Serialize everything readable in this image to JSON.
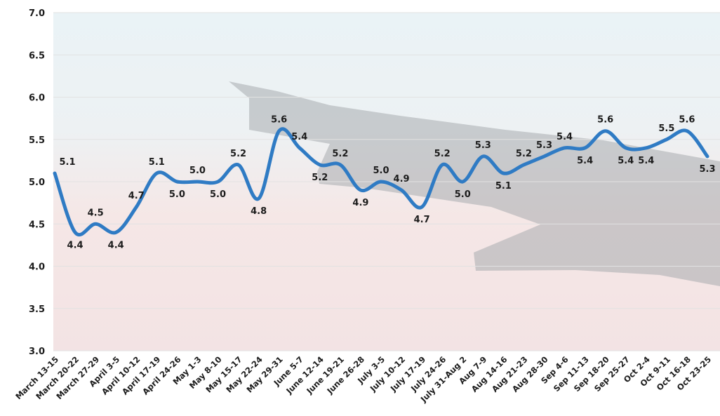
{
  "chart_data": {
    "type": "line",
    "title": "",
    "xlabel": "",
    "ylabel": "",
    "ylim": [
      3.0,
      7.0
    ],
    "yticks": [
      "3.0",
      "3.5",
      "4.0",
      "4.5",
      "5.0",
      "5.5",
      "6.0",
      "6.5",
      "7.0"
    ],
    "grid": true,
    "legend": "none",
    "categories": [
      "March 13-15",
      "March 20-22",
      "March 27-29",
      "April 3-5",
      "April 10-12",
      "April 17-19",
      "April 24-26",
      "May 1-3",
      "May 8-10",
      "May 15-17",
      "May 22-24",
      "May 29-31",
      "June 5-7",
      "June 12-14",
      "June 19-21",
      "June 26-28",
      "July 3-5",
      "July 10-12",
      "July 17-19",
      "July 24-26",
      "July 31-Aug 2",
      "Aug 7-9",
      "Aug 14-16",
      "Aug 21-23",
      "Aug 28-30",
      "Sep 4-6",
      "Sep 11-13",
      "Sep 18-20",
      "Sep 25-27",
      "Oct 2-4",
      "Oct 9-11",
      "Oct 16-18",
      "Oct 23-25"
    ],
    "series": [
      {
        "values": [
          5.1,
          4.4,
          4.5,
          4.4,
          4.7,
          5.1,
          5.0,
          5.0,
          5.0,
          5.2,
          4.8,
          5.6,
          5.4,
          5.2,
          5.2,
          4.9,
          5.0,
          4.9,
          4.7,
          5.2,
          5.0,
          5.3,
          5.1,
          5.2,
          5.3,
          5.4,
          5.4,
          5.6,
          5.4,
          5.4,
          5.5,
          5.6,
          5.3
        ],
        "labels": [
          "5.1",
          "4.4",
          "4.5",
          "4.4",
          "4.7",
          "5.1",
          "5.0",
          "5.0",
          "5.0",
          "5.2",
          "4.8",
          "5.6",
          "5.4",
          "5.2",
          "5.2",
          "4.9",
          "5.0",
          "4.9",
          "4.7",
          "5.2",
          "5.0",
          "5.3",
          "5.1",
          "5.2",
          "5.3",
          "5.4",
          "5.4",
          "5.6",
          "5.4",
          "5.4",
          "5.5",
          "5.6",
          "5.3"
        ],
        "color": "#2f7bc4"
      }
    ],
    "background": "airplane wing over clouds"
  }
}
